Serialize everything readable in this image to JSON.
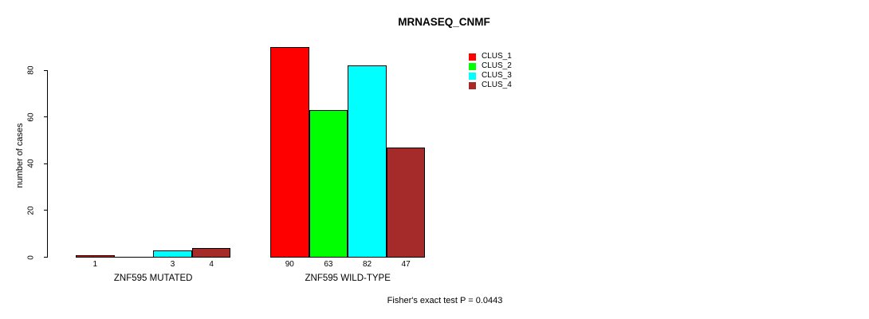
{
  "chart_data": {
    "type": "bar",
    "title": "MRNASEQ_CNMF",
    "ylabel": "number of cases",
    "xlabel": "",
    "yticks": [
      0,
      20,
      40,
      60,
      80
    ],
    "ylim": [
      0,
      92
    ],
    "grid": false,
    "legend_position": "top-right",
    "series_colors": [
      "#ff0000",
      "#00ff00",
      "#00ffff",
      "#a52a2a"
    ],
    "legend": [
      {
        "label": "CLUS_1",
        "color": "#ff0000"
      },
      {
        "label": "CLUS_2",
        "color": "#00ff00"
      },
      {
        "label": "CLUS_3",
        "color": "#00ffff"
      },
      {
        "label": "CLUS_4",
        "color": "#a52a2a"
      }
    ],
    "groups": [
      {
        "label": "ZNF595 MUTATED",
        "values": [
          1,
          0,
          3,
          4
        ],
        "bar_labels": [
          "1",
          "",
          "3",
          "4"
        ]
      },
      {
        "label": "ZNF595 WILD-TYPE",
        "values": [
          90,
          63,
          82,
          47
        ],
        "bar_labels": [
          "90",
          "63",
          "82",
          "47"
        ]
      }
    ],
    "annotation": "Fisher's exact test P = 0.0443"
  }
}
